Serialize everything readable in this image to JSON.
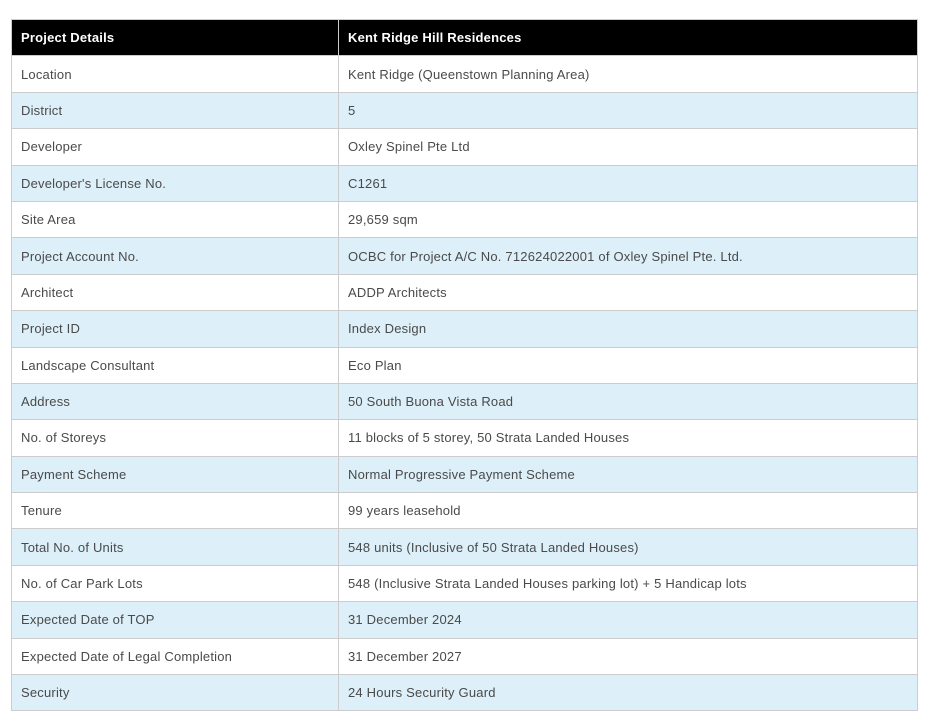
{
  "table": {
    "header": {
      "col1": "Project Details",
      "col2": "Kent Ridge Hill Residences"
    },
    "rows": [
      {
        "label": "Location",
        "value": "Kent Ridge (Queenstown Planning Area)"
      },
      {
        "label": "District",
        "value": "5"
      },
      {
        "label": "Developer",
        "value": "Oxley Spinel Pte Ltd"
      },
      {
        "label": "Developer's License No.",
        "value": "C1261"
      },
      {
        "label": "Site Area",
        "value": "29,659 sqm"
      },
      {
        "label": "Project Account No.",
        "value": "OCBC for Project A/C No. 712624022001 of Oxley Spinel Pte. Ltd."
      },
      {
        "label": "Architect",
        "value": "ADDP Architects"
      },
      {
        "label": "Project ID",
        "value": "Index Design"
      },
      {
        "label": "Landscape Consultant",
        "value": "Eco Plan"
      },
      {
        "label": "Address",
        "value": "50 South Buona Vista Road"
      },
      {
        "label": "No. of Storeys",
        "value": "11 blocks of 5 storey, 50 Strata Landed Houses"
      },
      {
        "label": "Payment Scheme",
        "value": "Normal Progressive Payment Scheme"
      },
      {
        "label": "Tenure",
        "value": "99 years leasehold"
      },
      {
        "label": "Total No. of Units",
        "value": "548 units (Inclusive of 50 Strata Landed Houses)"
      },
      {
        "label": "No. of Car Park Lots",
        "value": "548 (Inclusive Strata Landed Houses parking lot) + 5 Handicap lots"
      },
      {
        "label": "Expected Date of TOP",
        "value": "31 December 2024"
      },
      {
        "label": "Expected Date of Legal Completion",
        "value": "31 December 2027"
      },
      {
        "label": "Security",
        "value": "24 Hours Security Guard"
      }
    ],
    "colors": {
      "header_bg": "#000000",
      "header_text": "#ffffff",
      "row_bg": "#ffffff",
      "row_alt_bg": "#ddeff8",
      "border": "#cccccc",
      "text": "#4a4a4a"
    }
  }
}
